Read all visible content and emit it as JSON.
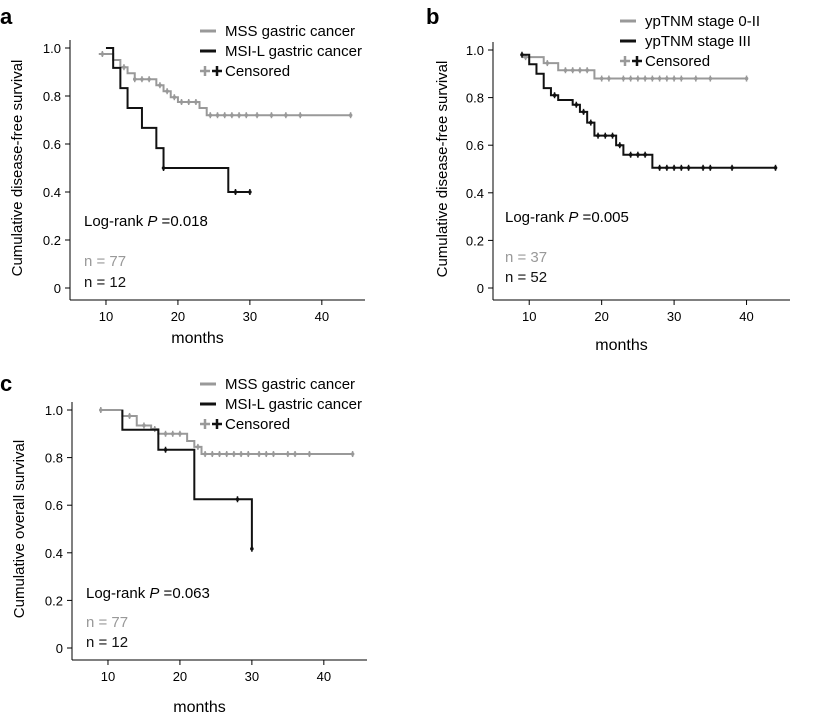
{
  "colors": {
    "mss": "#999999",
    "msi": "#111111",
    "axis": "#000000"
  },
  "chart_data": [
    {
      "type": "line",
      "panel": "a",
      "ylabel": "Cumulative disease-free survival",
      "xlabel": "months",
      "xlim": [
        5,
        46
      ],
      "ylim": [
        0,
        1.0
      ],
      "xticks": [
        10,
        20,
        30,
        40
      ],
      "yticks": [
        0,
        0.2,
        0.4,
        0.6,
        0.8,
        1.0
      ],
      "ytick_labels": [
        "0",
        "0.2",
        "0.4",
        "0.6",
        "0.8",
        "1.0"
      ],
      "legend": {
        "entries": [
          "MSS gastric cancer",
          "MSI-L gastric cancer"
        ],
        "censored": "Censored",
        "placement": "top-right"
      },
      "annotation": {
        "pre": "Log-rank ",
        "p": "P",
        "post": " =0.018"
      },
      "n_labels": [
        "n = 77",
        "n = 12"
      ],
      "series": [
        {
          "name": "MSS gastric cancer",
          "color_key": "mss",
          "steps": [
            [
              9,
              0.975
            ],
            [
              11,
              0.95
            ],
            [
              12,
              0.92
            ],
            [
              13,
              0.895
            ],
            [
              14,
              0.87
            ],
            [
              17,
              0.845
            ],
            [
              18,
              0.82
            ],
            [
              19,
              0.795
            ],
            [
              20,
              0.775
            ],
            [
              23,
              0.75
            ],
            [
              24,
              0.72
            ],
            [
              44,
              0.72
            ]
          ],
          "censored": [
            [
              9.5,
              0.975
            ],
            [
              12.5,
              0.92
            ],
            [
              14,
              0.87
            ],
            [
              15,
              0.87
            ],
            [
              16,
              0.87
            ],
            [
              17.5,
              0.845
            ],
            [
              18.5,
              0.82
            ],
            [
              19.5,
              0.795
            ],
            [
              20.5,
              0.775
            ],
            [
              21.5,
              0.775
            ],
            [
              22.5,
              0.775
            ],
            [
              24.5,
              0.72
            ],
            [
              25.5,
              0.72
            ],
            [
              26.5,
              0.72
            ],
            [
              27.5,
              0.72
            ],
            [
              28.5,
              0.72
            ],
            [
              29.5,
              0.72
            ],
            [
              31,
              0.72
            ],
            [
              33,
              0.72
            ],
            [
              35,
              0.72
            ],
            [
              37,
              0.72
            ],
            [
              44,
              0.72
            ]
          ]
        },
        {
          "name": "MSI-L gastric cancer",
          "color_key": "msi",
          "steps": [
            [
              10,
              1.0
            ],
            [
              11,
              0.917
            ],
            [
              12,
              0.833
            ],
            [
              13,
              0.75
            ],
            [
              15,
              0.667
            ],
            [
              17,
              0.583
            ],
            [
              18,
              0.5
            ],
            [
              27,
              0.4
            ],
            [
              30,
              0.4
            ]
          ],
          "censored": [
            [
              18,
              0.5
            ],
            [
              28,
              0.4
            ],
            [
              30,
              0.4
            ]
          ]
        }
      ]
    },
    {
      "type": "line",
      "panel": "b",
      "ylabel": "Cumulative disease-free survival",
      "xlabel": "months",
      "xlim": [
        5,
        46
      ],
      "ylim": [
        0,
        1.0
      ],
      "xticks": [
        10,
        20,
        30,
        40
      ],
      "yticks": [
        0,
        0.2,
        0.4,
        0.6,
        0.8,
        1.0
      ],
      "ytick_labels": [
        "0",
        "0.2",
        "0.4",
        "0.6",
        "0.8",
        "1.0"
      ],
      "legend": {
        "entries": [
          "ypTNM stage 0-II",
          "ypTNM stage III"
        ],
        "censored": "Censored",
        "placement": "top-right"
      },
      "annotation": {
        "pre": "Log-rank ",
        "p": "P",
        "post": " =0.005"
      },
      "n_labels": [
        "n = 37",
        "n = 52"
      ],
      "series": [
        {
          "name": "ypTNM stage 0-II",
          "color_key": "mss",
          "steps": [
            [
              9,
              0.97
            ],
            [
              12,
              0.945
            ],
            [
              14,
              0.915
            ],
            [
              19,
              0.88
            ],
            [
              40,
              0.88
            ]
          ],
          "censored": [
            [
              9.5,
              0.97
            ],
            [
              12.5,
              0.945
            ],
            [
              15,
              0.915
            ],
            [
              16,
              0.915
            ],
            [
              17,
              0.915
            ],
            [
              18,
              0.915
            ],
            [
              20,
              0.88
            ],
            [
              21,
              0.88
            ],
            [
              23,
              0.88
            ],
            [
              24,
              0.88
            ],
            [
              25,
              0.88
            ],
            [
              26,
              0.88
            ],
            [
              27,
              0.88
            ],
            [
              28,
              0.88
            ],
            [
              29,
              0.88
            ],
            [
              30,
              0.88
            ],
            [
              31,
              0.88
            ],
            [
              33,
              0.88
            ],
            [
              35,
              0.88
            ],
            [
              40,
              0.88
            ]
          ]
        },
        {
          "name": "ypTNM stage III",
          "color_key": "msi",
          "steps": [
            [
              9,
              0.98
            ],
            [
              10,
              0.94
            ],
            [
              11,
              0.9
            ],
            [
              12,
              0.84
            ],
            [
              13,
              0.81
            ],
            [
              14,
              0.79
            ],
            [
              16,
              0.77
            ],
            [
              17,
              0.74
            ],
            [
              18,
              0.695
            ],
            [
              19,
              0.64
            ],
            [
              22,
              0.6
            ],
            [
              23,
              0.56
            ],
            [
              26,
              0.56
            ],
            [
              27,
              0.505
            ],
            [
              44,
              0.505
            ]
          ],
          "censored": [
            [
              9,
              0.98
            ],
            [
              13.5,
              0.81
            ],
            [
              16.5,
              0.77
            ],
            [
              17.5,
              0.74
            ],
            [
              18.5,
              0.695
            ],
            [
              19.5,
              0.64
            ],
            [
              20.5,
              0.64
            ],
            [
              21.5,
              0.64
            ],
            [
              22.5,
              0.6
            ],
            [
              24,
              0.56
            ],
            [
              25,
              0.56
            ],
            [
              26,
              0.56
            ],
            [
              28,
              0.505
            ],
            [
              29,
              0.505
            ],
            [
              30,
              0.505
            ],
            [
              31,
              0.505
            ],
            [
              32,
              0.505
            ],
            [
              34,
              0.505
            ],
            [
              35,
              0.505
            ],
            [
              38,
              0.505
            ],
            [
              44,
              0.505
            ]
          ]
        }
      ]
    },
    {
      "type": "line",
      "panel": "c",
      "ylabel": "Cumulative overall survival",
      "xlabel": "months",
      "xlim": [
        5,
        46
      ],
      "ylim": [
        0,
        1.0
      ],
      "xticks": [
        10,
        20,
        30,
        40
      ],
      "yticks": [
        0,
        0.2,
        0.4,
        0.6,
        0.8,
        1.0
      ],
      "ytick_labels": [
        "0",
        "0.2",
        "0.4",
        "0.6",
        "0.8",
        "1.0"
      ],
      "legend": {
        "entries": [
          "MSS gastric cancer",
          "MSI-L gastric cancer"
        ],
        "censored": "Censored",
        "placement": "top-right"
      },
      "annotation": {
        "pre": "Log-rank ",
        "p": "P",
        "post": " =0.063"
      },
      "n_labels": [
        "n = 77",
        "n = 12"
      ],
      "series": [
        {
          "name": "MSS gastric cancer",
          "color_key": "mss",
          "steps": [
            [
              9,
              1.0
            ],
            [
              12,
              0.975
            ],
            [
              14,
              0.935
            ],
            [
              16,
              0.92
            ],
            [
              17,
              0.9
            ],
            [
              21,
              0.87
            ],
            [
              22,
              0.845
            ],
            [
              23,
              0.815
            ],
            [
              44,
              0.815
            ]
          ],
          "censored": [
            [
              9,
              1.0
            ],
            [
              13,
              0.975
            ],
            [
              15,
              0.935
            ],
            [
              16.5,
              0.92
            ],
            [
              18,
              0.9
            ],
            [
              19,
              0.9
            ],
            [
              20,
              0.9
            ],
            [
              22.5,
              0.845
            ],
            [
              23.5,
              0.815
            ],
            [
              24.5,
              0.815
            ],
            [
              25.5,
              0.815
            ],
            [
              26.5,
              0.815
            ],
            [
              27.5,
              0.815
            ],
            [
              28.5,
              0.815
            ],
            [
              29.5,
              0.815
            ],
            [
              31,
              0.815
            ],
            [
              32,
              0.815
            ],
            [
              33,
              0.815
            ],
            [
              35,
              0.815
            ],
            [
              36,
              0.815
            ],
            [
              38,
              0.815
            ],
            [
              44,
              0.815
            ]
          ]
        },
        {
          "name": "MSI-L gastric cancer",
          "color_key": "msi",
          "steps": [
            [
              12,
              1.0
            ],
            [
              12,
              0.917
            ],
            [
              17,
              0.833
            ],
            [
              22,
              0.625
            ],
            [
              30,
              0.417
            ]
          ],
          "censored": [
            [
              18,
              0.833
            ],
            [
              28,
              0.625
            ],
            [
              30,
              0.417
            ]
          ]
        }
      ]
    }
  ]
}
